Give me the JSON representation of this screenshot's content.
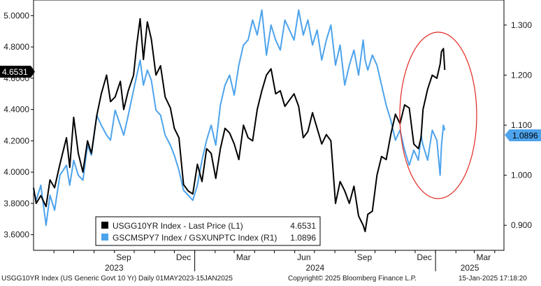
{
  "colors": {
    "series1": "#000000",
    "series2": "#4da3ec",
    "highlight": "#e0261f",
    "badge1_bg": "#000000",
    "badge2_bg": "#4da3ec"
  },
  "legend": {
    "rows": [
      {
        "label": "USGG10YR Index - Last Price (L1)",
        "value": "4.6531"
      },
      {
        "label": "GSCMSPY7 Index / GSXUNPTC Index (R1)",
        "value": "1.0896"
      }
    ]
  },
  "badges": {
    "left": "4.6531",
    "right": "1.0896"
  },
  "footer": {
    "left": "USGG10YR Index (US Generic Govt 10 Yr)  Daily 01MAY2023-15JAN2025",
    "center": "Copyright© 2025 Bloomberg Finance L.P.",
    "right": "15-Jan-2025 17:18:20"
  },
  "chart_data": {
    "type": "line",
    "x_range": [
      "2023-05-01",
      "2025-01-15"
    ],
    "x_month_labels": [
      "Sep",
      "Dec",
      "Mar",
      "Jun",
      "Sep",
      "Dec",
      "Mar"
    ],
    "x_year_labels": [
      "2023",
      "2024",
      "2025"
    ],
    "y_left": {
      "ylim": [
        3.5,
        5.1
      ],
      "ticks": [
        "3.6000",
        "3.8000",
        "4.0000",
        "4.2000",
        "4.4000",
        "4.6000",
        "4.8000",
        "5.0000"
      ]
    },
    "y_right": {
      "ylim": [
        0.85,
        1.35
      ],
      "ticks": [
        "0.900",
        "1.000",
        "1.100",
        "1.200",
        "1.300"
      ]
    },
    "grid": false,
    "legend_position": "bottom-center",
    "annotation": "red ellipse around Dec 2024 - Jan 2025",
    "series": [
      {
        "name": "USGG10YR Index - Last Price (L1)",
        "axis": "left",
        "points": [
          [
            "2023-05-01",
            3.9
          ],
          [
            "2023-05-05",
            3.8
          ],
          [
            "2023-05-12",
            3.85
          ],
          [
            "2023-05-20",
            3.78
          ],
          [
            "2023-05-26",
            3.95
          ],
          [
            "2023-06-02",
            3.9
          ],
          [
            "2023-06-10",
            4.05
          ],
          [
            "2023-06-20",
            4.22
          ],
          [
            "2023-06-25",
            4.03
          ],
          [
            "2023-07-01",
            4.35
          ],
          [
            "2023-07-08",
            4.12
          ],
          [
            "2023-07-15",
            4.0
          ],
          [
            "2023-07-22",
            4.2
          ],
          [
            "2023-07-28",
            4.12
          ],
          [
            "2023-08-05",
            4.36
          ],
          [
            "2023-08-12",
            4.5
          ],
          [
            "2023-08-20",
            4.62
          ],
          [
            "2023-08-26",
            4.45
          ],
          [
            "2023-09-02",
            4.48
          ],
          [
            "2023-09-10",
            4.58
          ],
          [
            "2023-09-15",
            4.4
          ],
          [
            "2023-09-22",
            4.52
          ],
          [
            "2023-09-30",
            4.62
          ],
          [
            "2023-10-05",
            4.82
          ],
          [
            "2023-10-10",
            4.98
          ],
          [
            "2023-10-15",
            4.72
          ],
          [
            "2023-10-21",
            4.96
          ],
          [
            "2023-10-27",
            4.85
          ],
          [
            "2023-11-03",
            4.62
          ],
          [
            "2023-11-10",
            4.68
          ],
          [
            "2023-11-17",
            4.48
          ],
          [
            "2023-11-25",
            4.41
          ],
          [
            "2023-12-01",
            4.28
          ],
          [
            "2023-12-08",
            4.22
          ],
          [
            "2023-12-15",
            3.92
          ],
          [
            "2023-12-22",
            3.88
          ],
          [
            "2023-12-29",
            3.86
          ],
          [
            "2024-01-05",
            4.05
          ],
          [
            "2024-01-12",
            3.94
          ],
          [
            "2024-01-19",
            4.15
          ],
          [
            "2024-01-26",
            4.12
          ],
          [
            "2024-02-02",
            3.96
          ],
          [
            "2024-02-09",
            4.15
          ],
          [
            "2024-02-16",
            4.28
          ],
          [
            "2024-02-23",
            4.25
          ],
          [
            "2024-03-01",
            4.18
          ],
          [
            "2024-03-08",
            4.08
          ],
          [
            "2024-03-15",
            4.3
          ],
          [
            "2024-03-22",
            4.22
          ],
          [
            "2024-03-29",
            4.2
          ],
          [
            "2024-04-05",
            4.4
          ],
          [
            "2024-04-12",
            4.52
          ],
          [
            "2024-04-19",
            4.62
          ],
          [
            "2024-04-26",
            4.66
          ],
          [
            "2024-05-03",
            4.5
          ],
          [
            "2024-05-10",
            4.52
          ],
          [
            "2024-05-17",
            4.42
          ],
          [
            "2024-05-24",
            4.46
          ],
          [
            "2024-05-31",
            4.5
          ],
          [
            "2024-06-07",
            4.42
          ],
          [
            "2024-06-14",
            4.22
          ],
          [
            "2024-06-21",
            4.26
          ],
          [
            "2024-06-28",
            4.38
          ],
          [
            "2024-07-05",
            4.28
          ],
          [
            "2024-07-12",
            4.18
          ],
          [
            "2024-07-19",
            4.24
          ],
          [
            "2024-07-26",
            4.2
          ],
          [
            "2024-08-02",
            3.8
          ],
          [
            "2024-08-09",
            3.94
          ],
          [
            "2024-08-16",
            3.88
          ],
          [
            "2024-08-23",
            3.8
          ],
          [
            "2024-08-30",
            3.91
          ],
          [
            "2024-09-06",
            3.72
          ],
          [
            "2024-09-13",
            3.66
          ],
          [
            "2024-09-16",
            3.62
          ],
          [
            "2024-09-20",
            3.73
          ],
          [
            "2024-09-27",
            3.75
          ],
          [
            "2024-10-04",
            3.98
          ],
          [
            "2024-10-11",
            4.1
          ],
          [
            "2024-10-18",
            4.08
          ],
          [
            "2024-10-25",
            4.24
          ],
          [
            "2024-11-01",
            4.37
          ],
          [
            "2024-11-08",
            4.31
          ],
          [
            "2024-11-15",
            4.43
          ],
          [
            "2024-11-22",
            4.41
          ],
          [
            "2024-11-29",
            4.18
          ],
          [
            "2024-12-06",
            4.15
          ],
          [
            "2024-12-10",
            4.22
          ],
          [
            "2024-12-13",
            4.4
          ],
          [
            "2024-12-20",
            4.53
          ],
          [
            "2024-12-27",
            4.62
          ],
          [
            "2025-01-03",
            4.6
          ],
          [
            "2025-01-08",
            4.69
          ],
          [
            "2025-01-10",
            4.77
          ],
          [
            "2025-01-13",
            4.79
          ],
          [
            "2025-01-15",
            4.6531
          ]
        ]
      },
      {
        "name": "GSCMSPY7 Index / GSXUNPTC Index (R1)",
        "axis": "right",
        "points": [
          [
            "2023-05-01",
            0.97
          ],
          [
            "2023-05-05",
            0.95
          ],
          [
            "2023-05-12",
            0.98
          ],
          [
            "2023-05-20",
            0.9
          ],
          [
            "2023-05-26",
            0.96
          ],
          [
            "2023-06-02",
            0.93
          ],
          [
            "2023-06-10",
            1.0
          ],
          [
            "2023-06-20",
            1.02
          ],
          [
            "2023-06-25",
            0.98
          ],
          [
            "2023-07-01",
            1.03
          ],
          [
            "2023-07-08",
            1.0
          ],
          [
            "2023-07-15",
            0.99
          ],
          [
            "2023-07-22",
            1.06
          ],
          [
            "2023-07-28",
            1.04
          ],
          [
            "2023-08-05",
            1.12
          ],
          [
            "2023-08-12",
            1.1
          ],
          [
            "2023-08-20",
            1.08
          ],
          [
            "2023-08-26",
            1.07
          ],
          [
            "2023-09-02",
            1.13
          ],
          [
            "2023-09-10",
            1.1
          ],
          [
            "2023-09-15",
            1.08
          ],
          [
            "2023-09-22",
            1.12
          ],
          [
            "2023-09-30",
            1.17
          ],
          [
            "2023-10-05",
            1.2
          ],
          [
            "2023-10-10",
            1.23
          ],
          [
            "2023-10-15",
            1.18
          ],
          [
            "2023-10-21",
            1.21
          ],
          [
            "2023-10-27",
            1.19
          ],
          [
            "2023-11-03",
            1.13
          ],
          [
            "2023-11-10",
            1.12
          ],
          [
            "2023-11-17",
            1.08
          ],
          [
            "2023-11-25",
            1.06
          ],
          [
            "2023-12-01",
            1.04
          ],
          [
            "2023-12-08",
            1.01
          ],
          [
            "2023-12-15",
            0.97
          ],
          [
            "2023-12-22",
            0.96
          ],
          [
            "2023-12-29",
            0.95
          ],
          [
            "2024-01-05",
            0.98
          ],
          [
            "2024-01-12",
            1.03
          ],
          [
            "2024-01-19",
            1.07
          ],
          [
            "2024-01-26",
            1.1
          ],
          [
            "2024-02-02",
            1.06
          ],
          [
            "2024-02-09",
            1.14
          ],
          [
            "2024-02-16",
            1.18
          ],
          [
            "2024-02-23",
            1.2
          ],
          [
            "2024-03-01",
            1.16
          ],
          [
            "2024-03-08",
            1.22
          ],
          [
            "2024-03-15",
            1.26
          ],
          [
            "2024-03-22",
            1.27
          ],
          [
            "2024-03-29",
            1.31
          ],
          [
            "2024-04-05",
            1.28
          ],
          [
            "2024-04-12",
            1.33
          ],
          [
            "2024-04-19",
            1.24
          ],
          [
            "2024-04-26",
            1.3
          ],
          [
            "2024-05-03",
            1.27
          ],
          [
            "2024-05-10",
            1.25
          ],
          [
            "2024-05-17",
            1.31
          ],
          [
            "2024-05-24",
            1.29
          ],
          [
            "2024-05-31",
            1.27
          ],
          [
            "2024-06-07",
            1.33
          ],
          [
            "2024-06-14",
            1.28
          ],
          [
            "2024-06-21",
            1.31
          ],
          [
            "2024-06-28",
            1.26
          ],
          [
            "2024-07-05",
            1.29
          ],
          [
            "2024-07-12",
            1.23
          ],
          [
            "2024-07-19",
            1.27
          ],
          [
            "2024-07-26",
            1.3
          ],
          [
            "2024-08-02",
            1.22
          ],
          [
            "2024-08-09",
            1.26
          ],
          [
            "2024-08-16",
            1.18
          ],
          [
            "2024-08-23",
            1.22
          ],
          [
            "2024-08-30",
            1.25
          ],
          [
            "2024-09-06",
            1.2
          ],
          [
            "2024-09-13",
            1.27
          ],
          [
            "2024-09-16",
            1.23
          ],
          [
            "2024-09-20",
            1.21
          ],
          [
            "2024-09-27",
            1.24
          ],
          [
            "2024-10-04",
            1.22
          ],
          [
            "2024-10-11",
            1.18
          ],
          [
            "2024-10-18",
            1.14
          ],
          [
            "2024-10-25",
            1.11
          ],
          [
            "2024-11-01",
            1.07
          ],
          [
            "2024-11-08",
            1.09
          ],
          [
            "2024-11-15",
            1.05
          ],
          [
            "2024-11-22",
            1.02
          ],
          [
            "2024-11-29",
            1.05
          ],
          [
            "2024-12-06",
            1.03
          ],
          [
            "2024-12-10",
            1.08
          ],
          [
            "2024-12-13",
            1.06
          ],
          [
            "2024-12-20",
            1.03
          ],
          [
            "2024-12-27",
            1.09
          ],
          [
            "2025-01-03",
            1.07
          ],
          [
            "2025-01-08",
            1.0
          ],
          [
            "2025-01-10",
            1.06
          ],
          [
            "2025-01-13",
            1.1
          ],
          [
            "2025-01-15",
            1.0896
          ]
        ]
      }
    ]
  }
}
